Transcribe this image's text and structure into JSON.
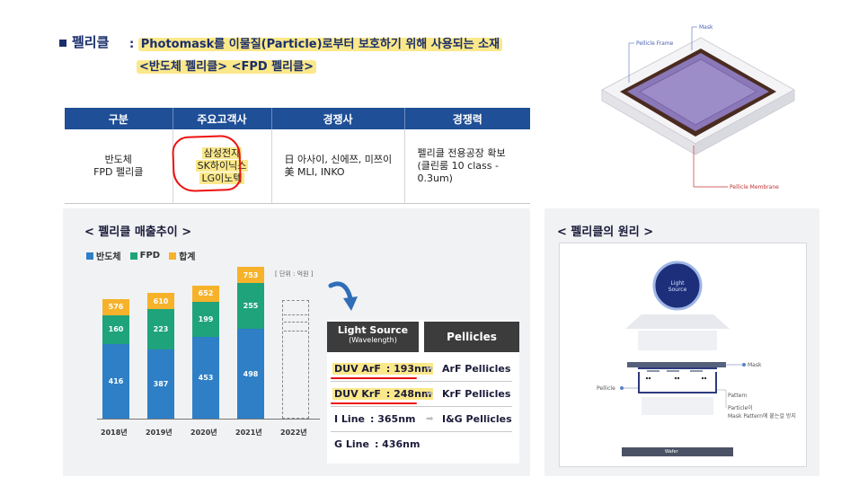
{
  "header": {
    "title": "펠리클",
    "desc_prefix": ":",
    "desc_line1": "Photomask를 이물질(Particle)로부터 보호하기 위해 사용되는 소재",
    "desc_line2": "<반도체 펠리클> <FPD 펠리클>"
  },
  "table": {
    "headers": [
      "구분",
      "주요고객사",
      "경쟁사",
      "경쟁력"
    ],
    "category": [
      "반도체",
      "FPD 펠리클"
    ],
    "customers": [
      "삼성전자",
      "SK하이닉스",
      "LG이노텍"
    ],
    "competitors": [
      "日 아사이, 신에쯔, 미쯔이",
      "美 MLI, INKO"
    ],
    "strength": [
      "펠리클 전용공장 확보",
      "(클린룸 10 class - 0.3um)"
    ]
  },
  "diagram_top": {
    "mask_label": "Mask",
    "frame_label": "Pellicle Frame",
    "membrane_label": "Pellicle Membrane"
  },
  "sales": {
    "title": "< 펠리클 매출추이 >",
    "unit": "[ 단위 : 억원 ]",
    "legend": [
      "반도체",
      "FPD",
      "합계"
    ],
    "colors": {
      "semi": "#2e7fc6",
      "fpd": "#1fa37a",
      "total": "#f6b22a"
    }
  },
  "chart_data": {
    "type": "bar",
    "title": "< 펠리클 매출추이 >",
    "categories": [
      "2018년",
      "2019년",
      "2020년",
      "2021년",
      "2022년"
    ],
    "series": [
      {
        "name": "반도체",
        "values": [
          416,
          387,
          453,
          498,
          null
        ]
      },
      {
        "name": "FPD",
        "values": [
          160,
          223,
          199,
          255,
          null
        ]
      },
      {
        "name": "합계",
        "values": [
          576,
          610,
          652,
          753,
          null
        ]
      }
    ],
    "ylim": [
      0,
      800
    ],
    "legend": "top-left"
  },
  "light_source": {
    "head_title": "Light Source",
    "head_sub": "(Wavelength)",
    "pellicles_head": "Pellicles",
    "rows": [
      {
        "name": "DUV ArF",
        "value": ": 193nm",
        "pellicle": "ArF Pellicles"
      },
      {
        "name": "DUV KrF",
        "value": ": 248nm",
        "pellicle": "KrF Pellicles"
      },
      {
        "name": "I Line",
        "value": ": 365nm",
        "pellicle": "I&G Pellicles"
      },
      {
        "name": "G Line",
        "value": ": 436nm",
        "pellicle": ""
      }
    ]
  },
  "principle": {
    "title": "< 펠리클의 원리 >",
    "light_source_line1": "Light",
    "light_source_line2": "Source",
    "mask": "Mask",
    "pellicle": "Pellicle",
    "pattern": "Pattern",
    "particle_line1": "Particle이",
    "particle_line2": "Mask Pattern에 붙는걸 방지",
    "wafer": "Wafer"
  }
}
